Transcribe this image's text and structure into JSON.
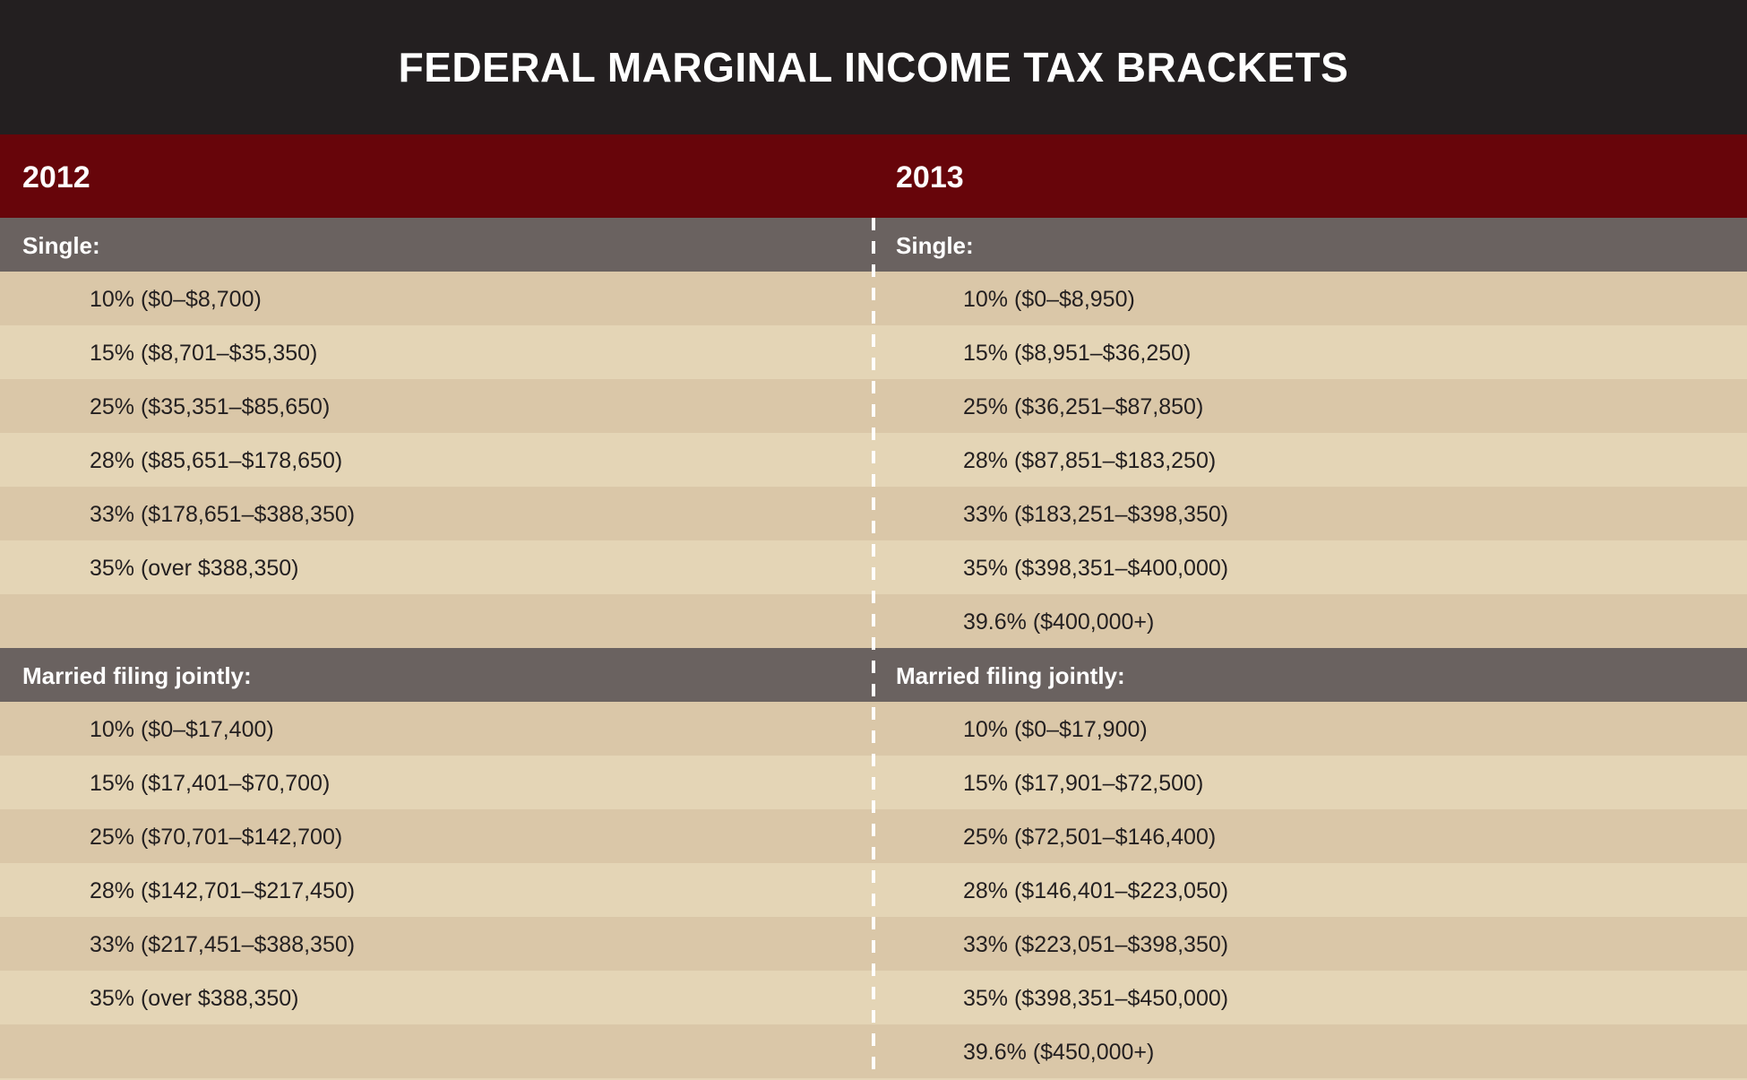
{
  "title": "FEDERAL MARGINAL INCOME TAX BRACKETS",
  "columns": [
    {
      "year": "2012",
      "single_label": "Single:",
      "single": [
        "10% ($0–$8,700)",
        "15% ($8,701–$35,350)",
        "25% ($35,351–$85,650)",
        "28% ($85,651–$178,650)",
        "33% ($178,651–$388,350)",
        "35% (over $388,350)",
        ""
      ],
      "married_label": "Married filing jointly:",
      "married": [
        "10% ($0–$17,400)",
        "15% ($17,401–$70,700)",
        "25% ($70,701–$142,700)",
        "28% ($142,701–$217,450)",
        "33% ($217,451–$388,350)",
        "35% (over $388,350)",
        ""
      ]
    },
    {
      "year": "2013",
      "single_label": "Single:",
      "single": [
        "10% ($0–$8,950)",
        "15% ($8,951–$36,250)",
        "25% ($36,251–$87,850)",
        "28% ($87,851–$183,250)",
        "33% ($183,251–$398,350)",
        "35% ($398,351–$400,000)",
        "39.6% ($400,000+)"
      ],
      "married_label": "Married filing jointly:",
      "married": [
        "10% ($0–$17,900)",
        "15% ($17,901–$72,500)",
        "25% ($72,501–$146,400)",
        "28% ($146,401–$223,050)",
        "33% ($223,051–$398,350)",
        "35% ($398,351–$450,000)",
        "39.6% ($450,000+)"
      ]
    }
  ],
  "colors": {
    "title_bg": "#231f20",
    "year_bg": "#67050a",
    "section_bg": "#6a6260",
    "row_dark": "#dac7a8",
    "row_light": "#e4d5b6"
  }
}
